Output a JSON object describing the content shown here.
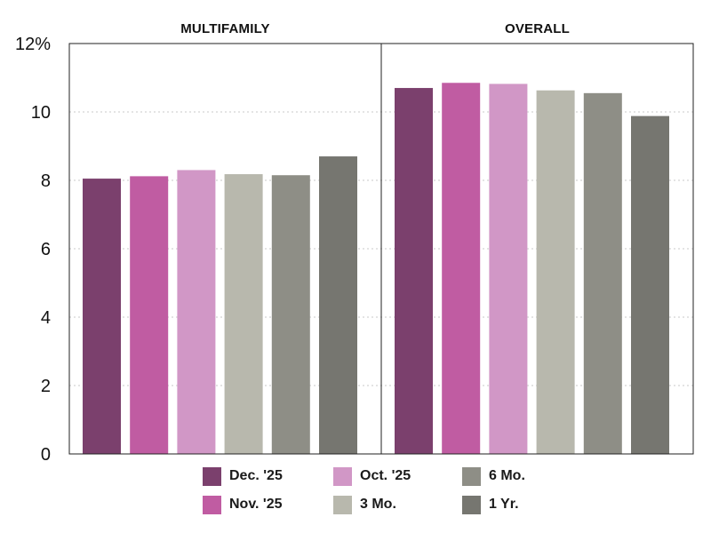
{
  "chart_data": {
    "type": "bar",
    "ylim": [
      0,
      12
    ],
    "yticks": [
      "0",
      "2",
      "4",
      "6",
      "8",
      "10",
      "12%"
    ],
    "grid": "horizontal-dotted",
    "legend_placement": "bottom",
    "series": [
      {
        "name": "Dec. '25",
        "color": "#7b406d"
      },
      {
        "name": "Nov. '25",
        "color": "#c05ca2"
      },
      {
        "name": "Oct. '25",
        "color": "#d197c6"
      },
      {
        "name": "3 Mo.",
        "color": "#b8b8ad"
      },
      {
        "name": "6 Mo.",
        "color": "#8e8e86"
      },
      {
        "name": "1 Yr.",
        "color": "#767670"
      }
    ],
    "panels": [
      {
        "title": "MULTIFAMILY",
        "values": [
          8.05,
          8.12,
          8.3,
          8.18,
          8.15,
          8.7
        ]
      },
      {
        "title": "OVERALL",
        "values": [
          10.7,
          10.85,
          10.82,
          10.63,
          10.55,
          9.88
        ]
      }
    ]
  }
}
